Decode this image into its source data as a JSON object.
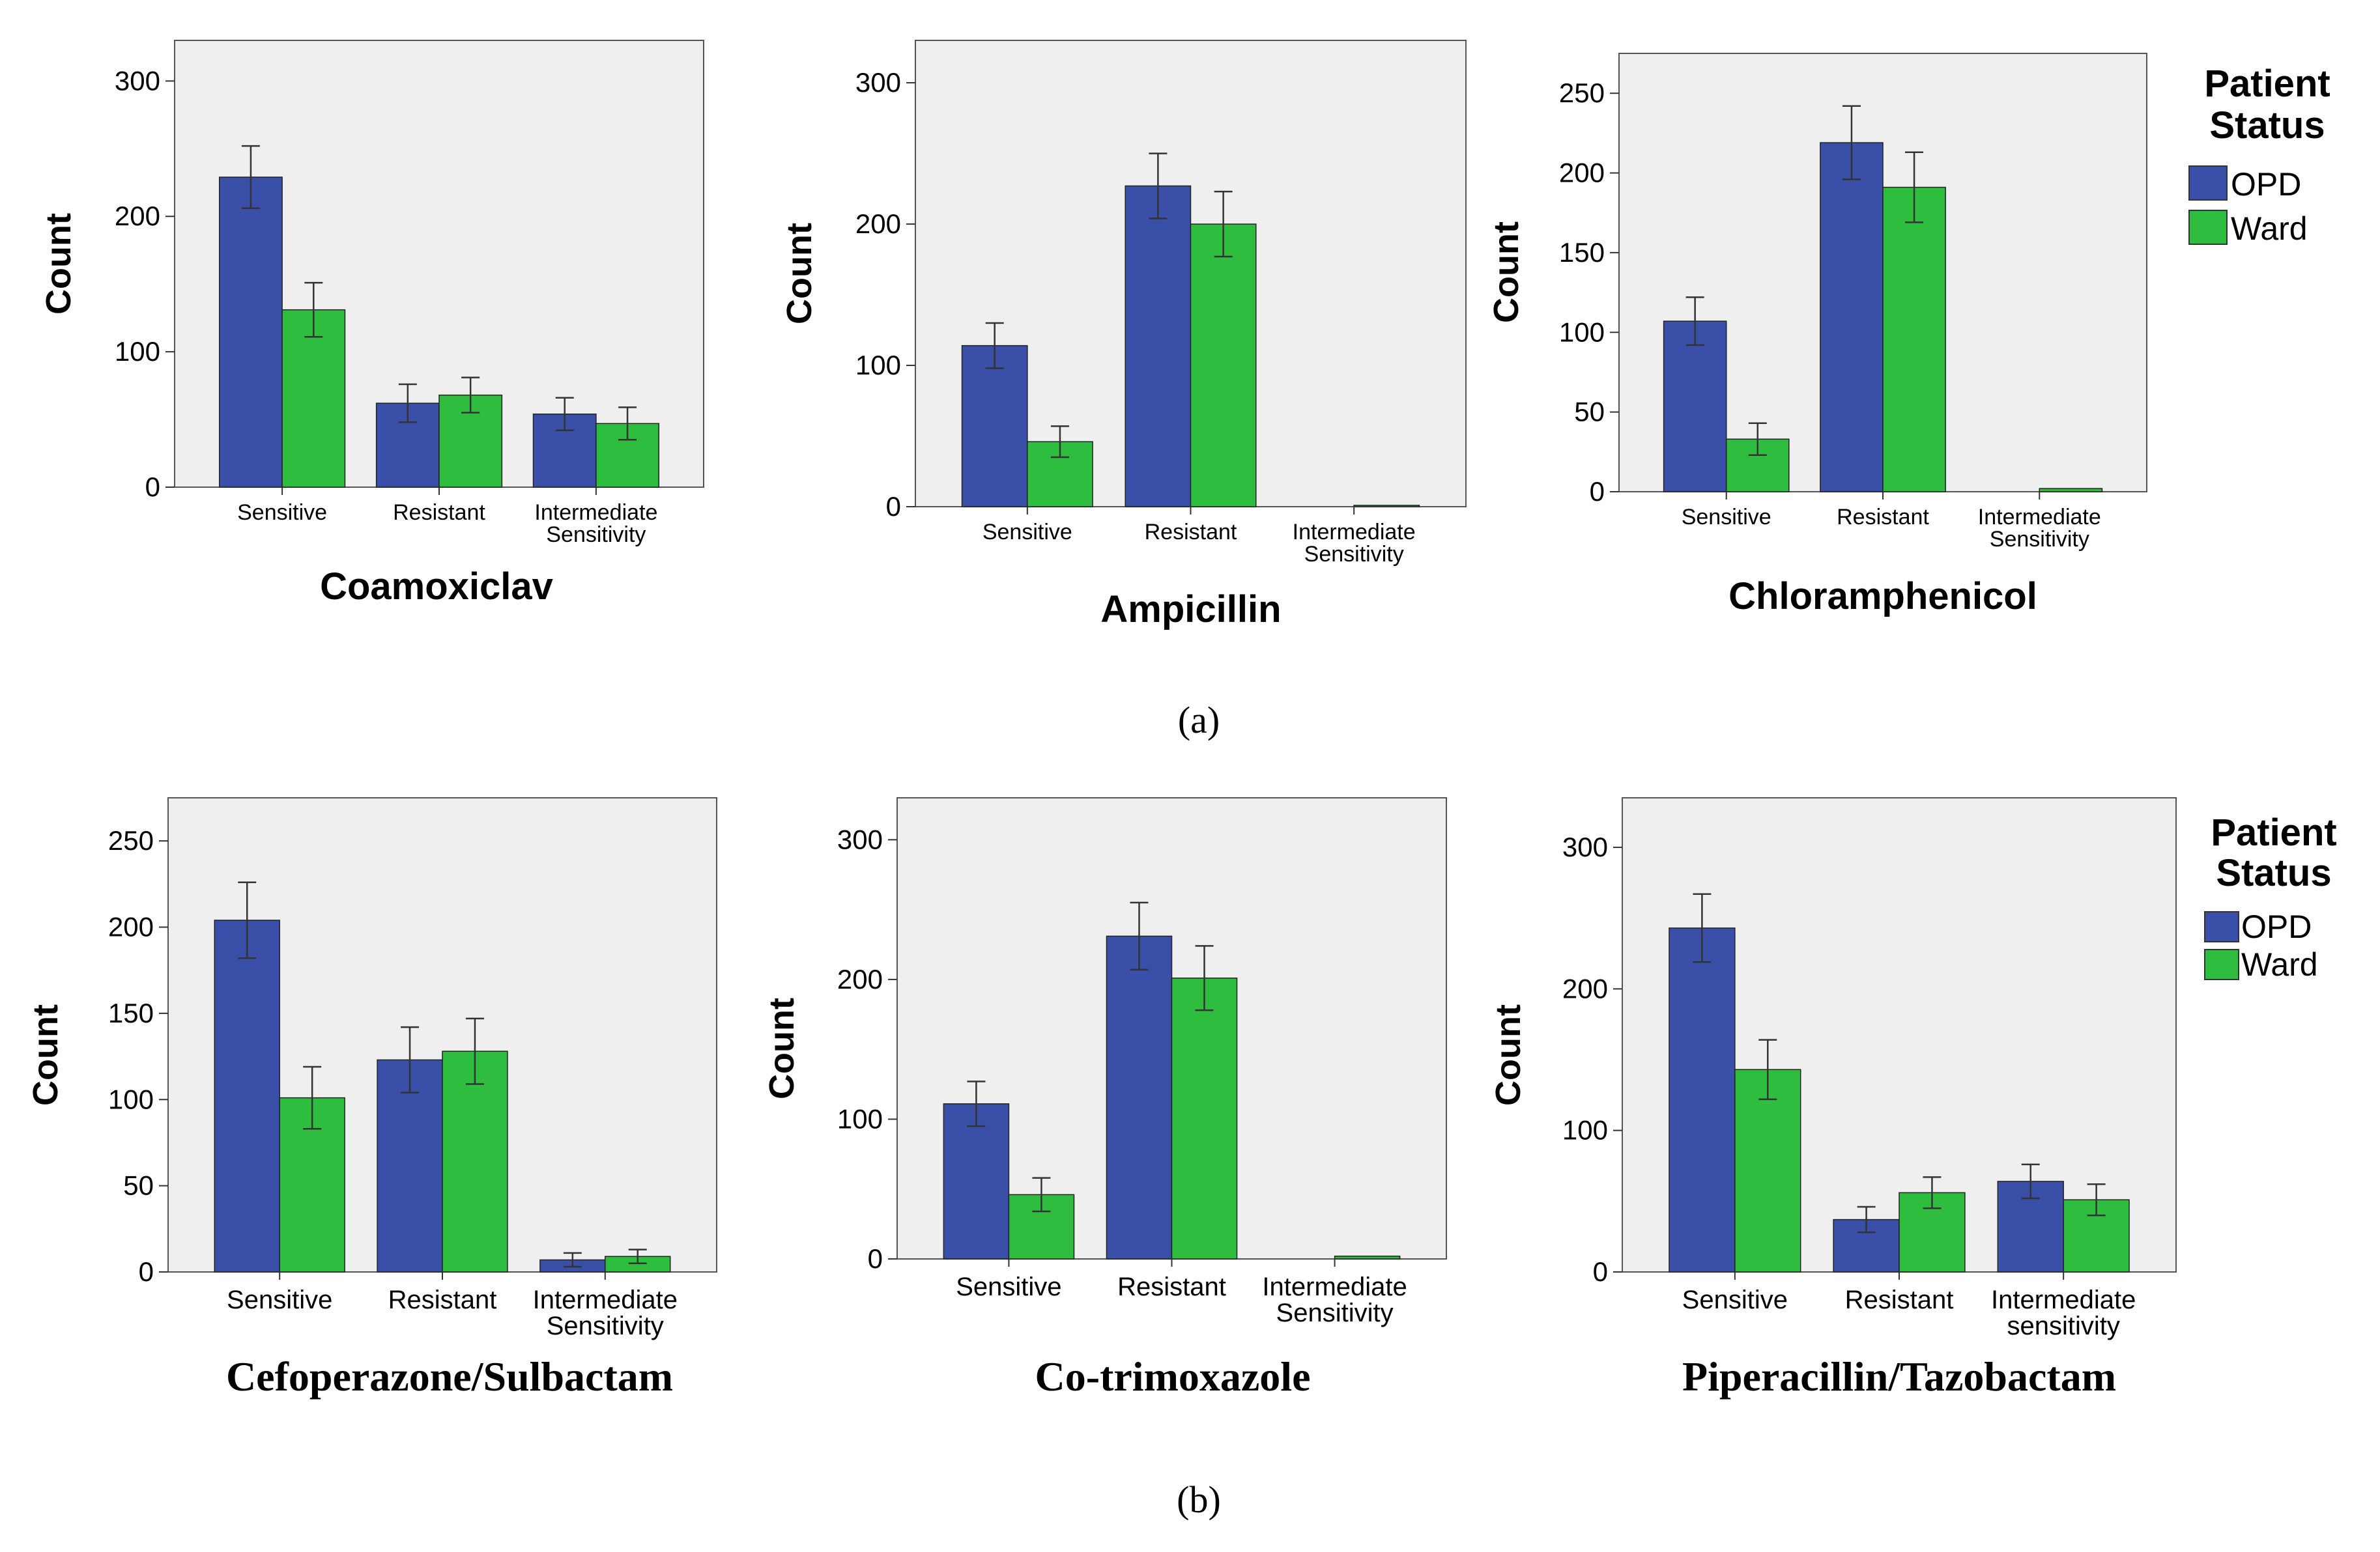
{
  "colors": {
    "opd": "#3a4fa8",
    "ward": "#2fbd3f",
    "plot_bg": "#efefef",
    "axis": "#666666"
  },
  "legend": {
    "title_line1": "Patient",
    "title_line2": "Status",
    "opd": "OPD",
    "ward": "Ward"
  },
  "panel_labels": {
    "a": "(a)",
    "b": "(b)"
  },
  "chart_data": [
    {
      "type": "bar",
      "panel": "a",
      "title": "Coamoxiclav",
      "ylabel": "Count",
      "ylim": [
        0,
        330
      ],
      "yticks": [
        0,
        100,
        200,
        300
      ],
      "categories": [
        [
          "Sensitive"
        ],
        [
          "Resistant"
        ],
        [
          "Intermediate",
          "Sensitivity"
        ]
      ],
      "series": [
        {
          "name": "OPD",
          "values": [
            229,
            62,
            54
          ],
          "errors": [
            23,
            14,
            12
          ]
        },
        {
          "name": "Ward",
          "values": [
            131,
            68,
            47
          ],
          "errors": [
            20,
            13,
            12
          ]
        }
      ]
    },
    {
      "type": "bar",
      "panel": "a",
      "title": "Ampicillin",
      "ylabel": "Count",
      "ylim": [
        0,
        330
      ],
      "yticks": [
        0,
        100,
        200,
        300
      ],
      "categories": [
        [
          "Sensitive"
        ],
        [
          "Resistant"
        ],
        [
          "Intermediate",
          "Sensitivity"
        ]
      ],
      "series": [
        {
          "name": "OPD",
          "values": [
            114,
            227,
            0
          ],
          "errors": [
            16,
            23,
            0
          ]
        },
        {
          "name": "Ward",
          "values": [
            46,
            200,
            1
          ],
          "errors": [
            11,
            23,
            0
          ]
        }
      ]
    },
    {
      "type": "bar",
      "panel": "a",
      "title": "Chloramphenicol",
      "ylabel": "Count",
      "ylim": [
        0,
        275
      ],
      "yticks": [
        0,
        50,
        100,
        150,
        200,
        250
      ],
      "categories": [
        [
          "Sensitive"
        ],
        [
          "Resistant"
        ],
        [
          "Intermediate",
          "Sensitivity"
        ]
      ],
      "series": [
        {
          "name": "OPD",
          "values": [
            107,
            219,
            0
          ],
          "errors": [
            15,
            23,
            0
          ]
        },
        {
          "name": "Ward",
          "values": [
            33,
            191,
            2
          ],
          "errors": [
            10,
            22,
            0
          ]
        }
      ]
    },
    {
      "type": "bar",
      "panel": "b",
      "title": "Cefoperazone/Sulbactam",
      "ylabel": "Count",
      "ylim": [
        0,
        275
      ],
      "yticks": [
        0,
        50,
        100,
        150,
        200,
        250
      ],
      "categories": [
        [
          "Sensitive"
        ],
        [
          "Resistant"
        ],
        [
          "Intermediate",
          "Sensitivity"
        ]
      ],
      "series": [
        {
          "name": "OPD",
          "values": [
            204,
            123,
            7
          ],
          "errors": [
            22,
            19,
            4
          ]
        },
        {
          "name": "Ward",
          "values": [
            101,
            128,
            9
          ],
          "errors": [
            18,
            19,
            4
          ]
        }
      ]
    },
    {
      "type": "bar",
      "panel": "b",
      "title": "Co-trimoxazole",
      "ylabel": "Count",
      "ylim": [
        0,
        330
      ],
      "yticks": [
        0,
        100,
        200,
        300
      ],
      "categories": [
        [
          "Sensitive"
        ],
        [
          "Resistant"
        ],
        [
          "Intermediate",
          "Sensitivity"
        ]
      ],
      "series": [
        {
          "name": "OPD",
          "values": [
            111,
            231,
            0
          ],
          "errors": [
            16,
            24,
            0
          ]
        },
        {
          "name": "Ward",
          "values": [
            46,
            201,
            2
          ],
          "errors": [
            12,
            23,
            0
          ]
        }
      ]
    },
    {
      "type": "bar",
      "panel": "b",
      "title": "Piperacillin/Tazobactam",
      "ylabel": "Count",
      "ylim": [
        0,
        335
      ],
      "yticks": [
        0,
        100,
        200,
        300
      ],
      "categories": [
        [
          "Sensitive"
        ],
        [
          "Resistant"
        ],
        [
          "Intermediate",
          "sensitivity"
        ]
      ],
      "series": [
        {
          "name": "OPD",
          "values": [
            243,
            37,
            64
          ],
          "errors": [
            24,
            9,
            12
          ]
        },
        {
          "name": "Ward",
          "values": [
            143,
            56,
            51
          ],
          "errors": [
            21,
            11,
            11
          ]
        }
      ]
    }
  ]
}
